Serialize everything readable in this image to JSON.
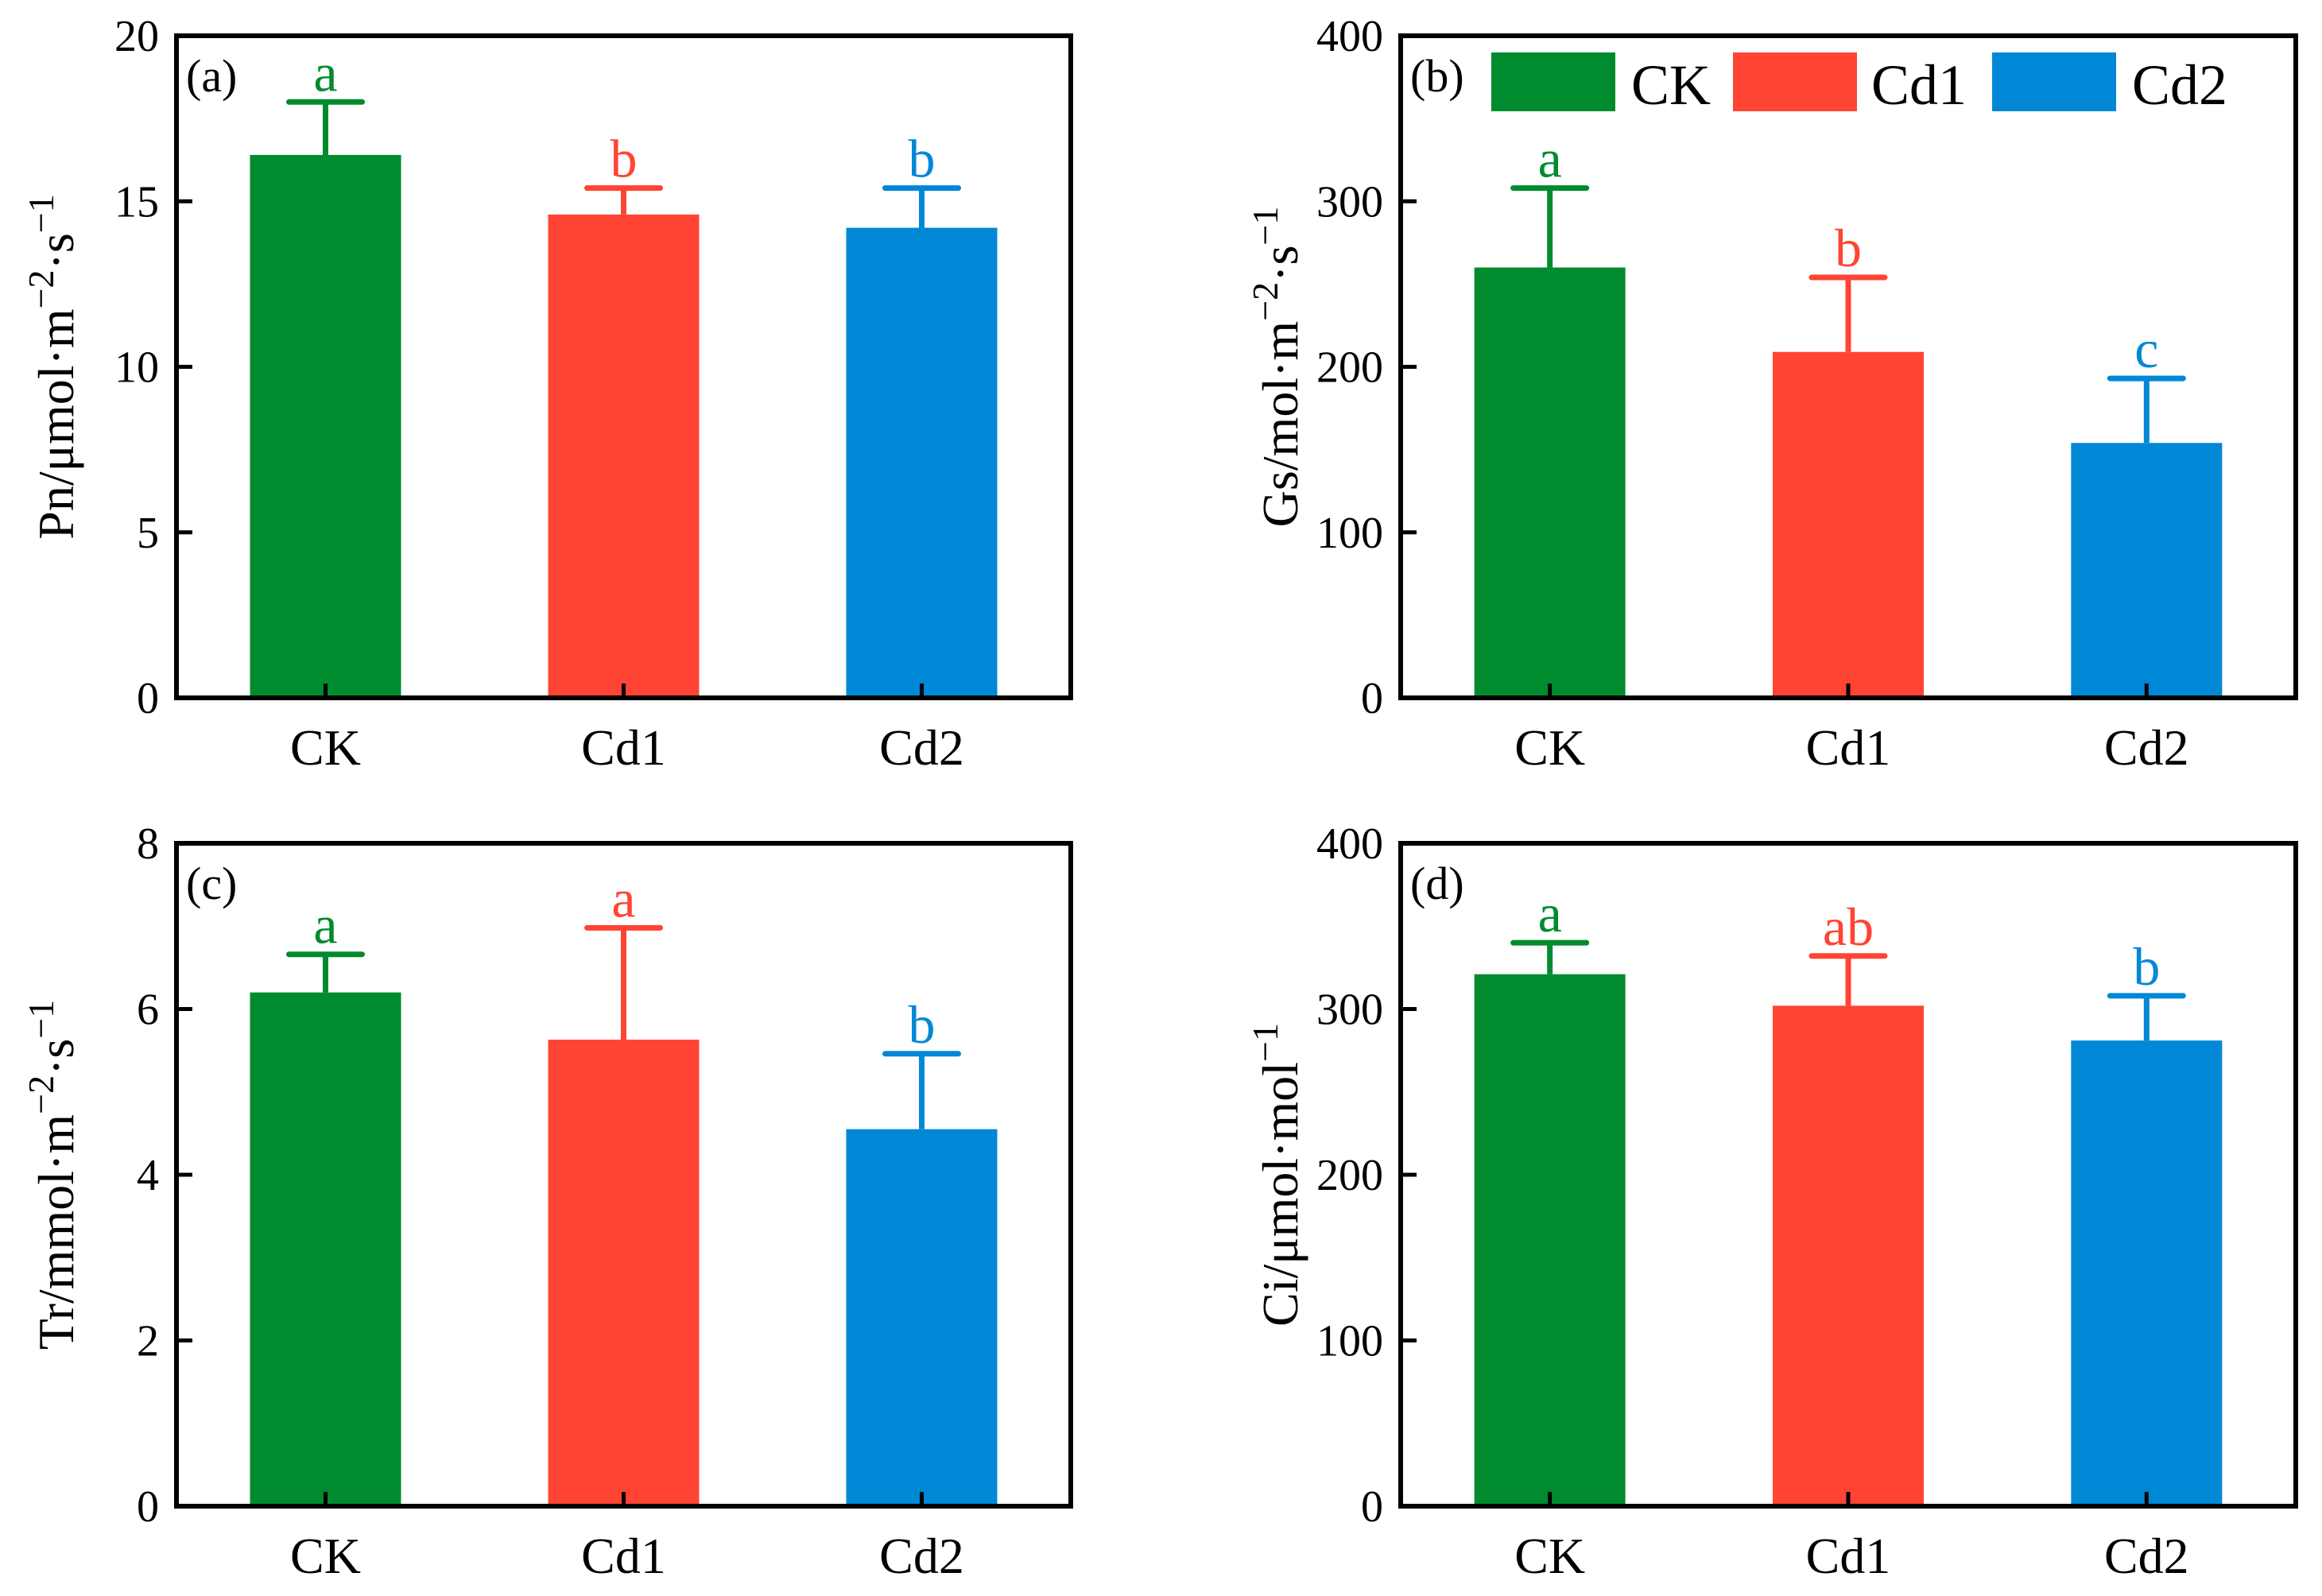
{
  "colors": {
    "CK": "#008b2e",
    "Cd1": "#ff4433",
    "Cd2": "#0088d6"
  },
  "legend": {
    "entries": [
      "CK",
      "Cd1",
      "Cd2"
    ],
    "placement": "top-right of panel (b)"
  },
  "chart_data": [
    {
      "type": "bar",
      "panel": "(a)",
      "title": "",
      "ylabel": "Pn/μmol·m⁻²·s⁻¹",
      "xlabel": "",
      "ylim": [
        0,
        20
      ],
      "yticks": [
        0,
        5,
        10,
        15,
        20
      ],
      "categories": [
        "CK",
        "Cd1",
        "Cd2"
      ],
      "values": [
        16.4,
        14.6,
        14.2
      ],
      "errors": [
        1.6,
        0.8,
        1.2
      ],
      "significance": [
        "a",
        "b",
        "b"
      ]
    },
    {
      "type": "bar",
      "panel": "(b)",
      "title": "",
      "ylabel": "Gs/mol·m⁻²·s⁻¹",
      "xlabel": "",
      "ylim": [
        0,
        400
      ],
      "yticks": [
        0,
        100,
        200,
        300,
        400
      ],
      "categories": [
        "CK",
        "Cd1",
        "Cd2"
      ],
      "values": [
        260,
        209,
        154
      ],
      "errors": [
        48,
        45,
        39
      ],
      "significance": [
        "a",
        "b",
        "c"
      ]
    },
    {
      "type": "bar",
      "panel": "(c)",
      "title": "",
      "ylabel": "Tr/mmol·m⁻²·s⁻¹",
      "xlabel": "",
      "ylim": [
        0,
        8
      ],
      "yticks": [
        0,
        2,
        4,
        6,
        8
      ],
      "categories": [
        "CK",
        "Cd1",
        "Cd2"
      ],
      "values": [
        6.2,
        5.63,
        4.55
      ],
      "errors": [
        0.46,
        1.35,
        0.91
      ],
      "significance": [
        "a",
        "a",
        "b"
      ]
    },
    {
      "type": "bar",
      "panel": "(d)",
      "title": "",
      "ylabel": "Ci/μmol·mol⁻¹",
      "xlabel": "",
      "ylim": [
        0,
        400
      ],
      "yticks": [
        0,
        100,
        200,
        300,
        400
      ],
      "categories": [
        "CK",
        "Cd1",
        "Cd2"
      ],
      "values": [
        321,
        302,
        281
      ],
      "errors": [
        19,
        30,
        27
      ],
      "significance": [
        "a",
        "ab",
        "b"
      ]
    }
  ]
}
